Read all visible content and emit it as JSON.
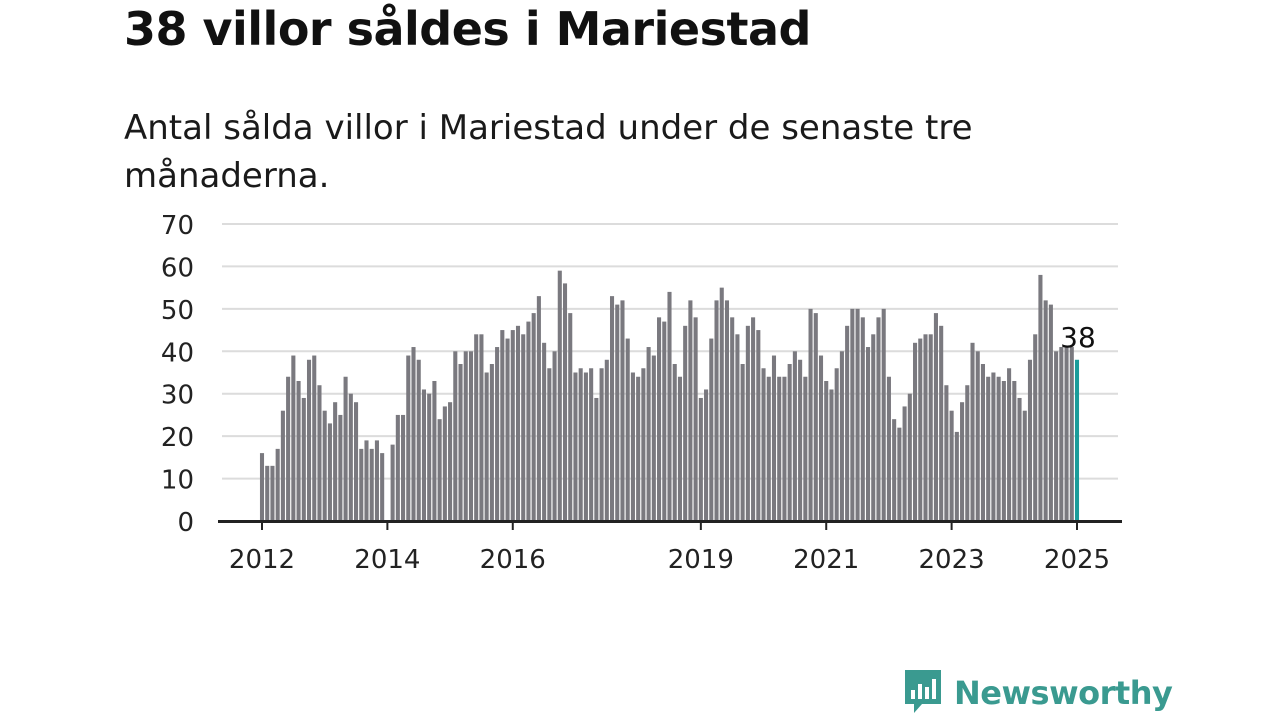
{
  "header": {
    "title": "38 villor såldes i Mariestad",
    "subtitle": "Antal sålda villor i Mariestad under de senaste tre månaderna."
  },
  "brand": {
    "name": "Newsworthy",
    "icon": "newsworthy-logo-icon"
  },
  "colors": {
    "bar": "#7a797f",
    "highlight": "#1a9c9a",
    "grid": "#dcdcdc",
    "axis": "#222222",
    "brand": "#3a9a90"
  },
  "chart_data": {
    "type": "bar",
    "title": "38 villor såldes i Mariestad",
    "subtitle": "Antal sålda villor i Mariestad under de senaste tre månaderna.",
    "xlabel": "",
    "ylabel": "",
    "ylim": [
      0,
      70
    ],
    "yticks": [
      0,
      10,
      20,
      30,
      40,
      50,
      60,
      70
    ],
    "xticks": [
      {
        "label": "2012",
        "year": 2012
      },
      {
        "label": "2014",
        "year": 2014
      },
      {
        "label": "2016",
        "year": 2016
      },
      {
        "label": "2019",
        "year": 2019
      },
      {
        "label": "2021",
        "year": 2021
      },
      {
        "label": "2023",
        "year": 2023
      },
      {
        "label": "2025",
        "year": 2025
      }
    ],
    "x_start": "2012-01",
    "x_frequency": "monthly",
    "grid": true,
    "legend": "none",
    "highlight_label": "38",
    "values": [
      16,
      13,
      13,
      17,
      26,
      34,
      39,
      33,
      29,
      38,
      39,
      32,
      26,
      23,
      28,
      25,
      34,
      30,
      28,
      17,
      19,
      17,
      19,
      16,
      0,
      18,
      25,
      25,
      39,
      41,
      38,
      31,
      30,
      33,
      24,
      27,
      28,
      40,
      37,
      40,
      40,
      44,
      44,
      35,
      37,
      41,
      45,
      43,
      45,
      46,
      44,
      47,
      49,
      53,
      42,
      36,
      40,
      59,
      56,
      49,
      35,
      36,
      35,
      36,
      29,
      36,
      38,
      53,
      51,
      52,
      43,
      35,
      34,
      36,
      41,
      39,
      48,
      47,
      54,
      37,
      34,
      46,
      52,
      48,
      29,
      31,
      43,
      52,
      55,
      52,
      48,
      44,
      37,
      46,
      48,
      45,
      36,
      34,
      39,
      34,
      34,
      37,
      40,
      38,
      34,
      50,
      49,
      39,
      33,
      31,
      36,
      40,
      46,
      50,
      50,
      48,
      41,
      44,
      48,
      50,
      34,
      24,
      22,
      27,
      30,
      42,
      43,
      44,
      44,
      49,
      46,
      32,
      26,
      21,
      28,
      32,
      42,
      40,
      37,
      34,
      35,
      34,
      33,
      36,
      33,
      29,
      26,
      38,
      44,
      58,
      52,
      51,
      40,
      41,
      41,
      41,
      38
    ]
  }
}
